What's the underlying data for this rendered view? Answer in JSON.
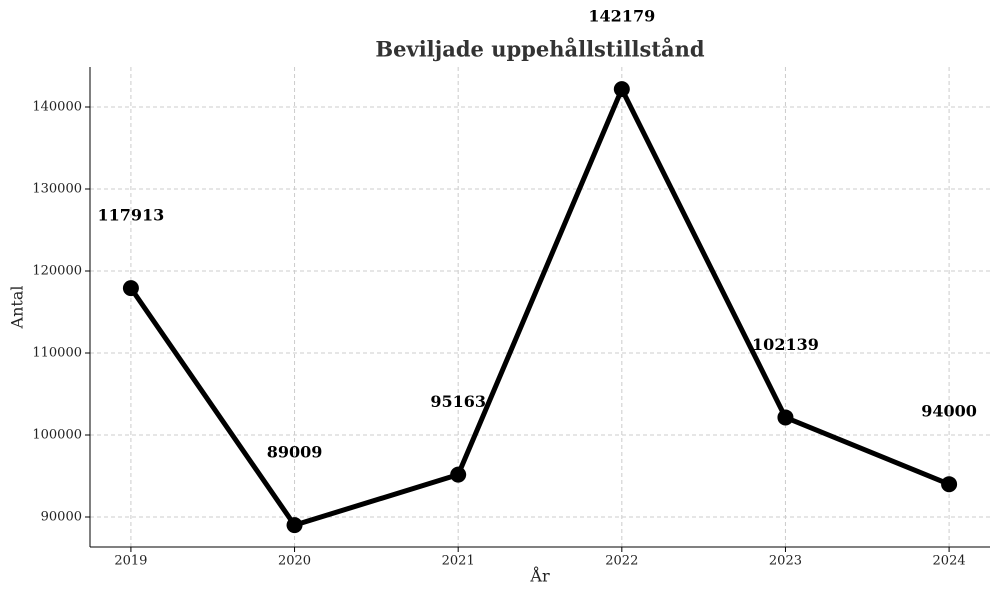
{
  "chart_data": {
    "type": "line",
    "title": "Beviljade uppehållstillstånd",
    "xlabel": "År",
    "ylabel": "Antal",
    "x": [
      2019,
      2020,
      2021,
      2022,
      2023,
      2024
    ],
    "values": [
      117913,
      89009,
      95163,
      142179,
      102139,
      94000
    ],
    "color": "#000000",
    "xlim": [
      2018.75,
      2024.25
    ],
    "xticks": [
      2019,
      2020,
      2021,
      2022,
      2023,
      2024
    ],
    "ylim": [
      86340,
      144880
    ],
    "yticks": [
      90000,
      100000,
      110000,
      120000,
      130000,
      140000
    ],
    "grid": true
  }
}
